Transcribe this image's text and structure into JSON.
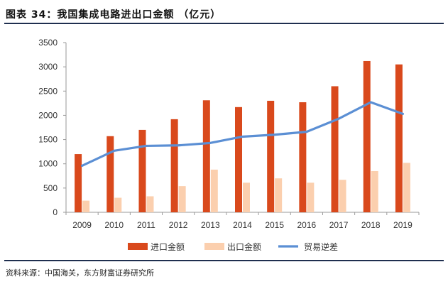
{
  "header": {
    "title": "图表 34：我国集成电路进出口金额 （亿元）"
  },
  "footer": {
    "source": "资料来源：中国海关，东方财富证券研究所"
  },
  "colors": {
    "import": "#d9491c",
    "export": "#fbcfae",
    "balance": "#5b8fd4",
    "axis": "#9a9a9a",
    "rule": "#1f2f4f"
  },
  "chart_data": {
    "type": "bar",
    "title": "图表 34：我国集成电路进出口金额 （亿元）",
    "categories": [
      "2009",
      "2010",
      "2011",
      "2012",
      "2013",
      "2014",
      "2015",
      "2016",
      "2017",
      "2018",
      "2019"
    ],
    "series": [
      {
        "name": "进口金额",
        "type": "bar",
        "values": [
          1200,
          1570,
          1700,
          1920,
          2310,
          2170,
          2300,
          2270,
          2600,
          3120,
          3050
        ]
      },
      {
        "name": "出口金额",
        "type": "bar",
        "values": [
          240,
          300,
          330,
          540,
          880,
          610,
          700,
          610,
          670,
          850,
          1020
        ]
      },
      {
        "name": "贸易逆差",
        "type": "line",
        "values": [
          960,
          1270,
          1370,
          1380,
          1430,
          1560,
          1600,
          1660,
          1930,
          2270,
          2030
        ]
      }
    ],
    "ylim": [
      0,
      3500
    ],
    "yticks": [
      0,
      500,
      1000,
      1500,
      2000,
      2500,
      3000,
      3500
    ],
    "xlabel": "",
    "ylabel": "",
    "grid": false,
    "legend": "bottom"
  }
}
